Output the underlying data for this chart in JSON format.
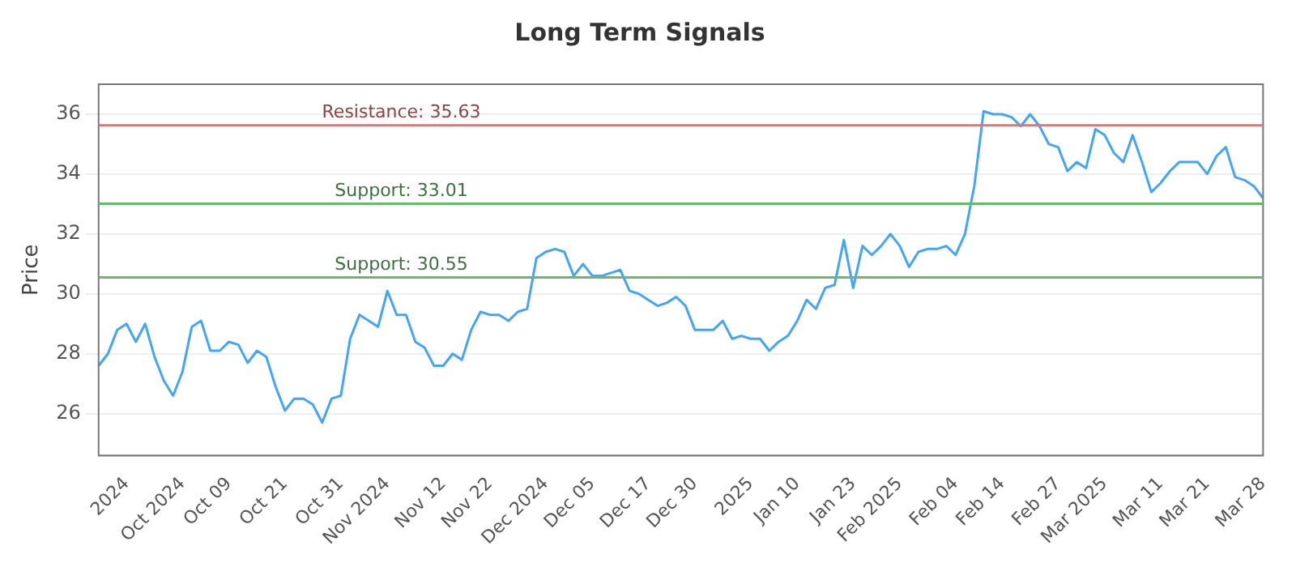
{
  "chart_data": {
    "type": "line",
    "title": "Long Term Signals",
    "ylabel": "Price",
    "categories": [
      null,
      null,
      null,
      "2024",
      null,
      null,
      null,
      null,
      null,
      "Oct 2024",
      null,
      null,
      null,
      null,
      "Oct 09",
      null,
      null,
      null,
      null,
      null,
      "Oct 21",
      null,
      null,
      null,
      null,
      null,
      "Oct 31",
      null,
      null,
      null,
      null,
      "Nov 2024",
      null,
      null,
      null,
      null,
      null,
      "Nov 12",
      null,
      null,
      null,
      null,
      "Nov 22",
      null,
      null,
      null,
      null,
      null,
      "Dec 2024",
      null,
      null,
      null,
      null,
      "Dec 05",
      null,
      null,
      null,
      null,
      null,
      "Dec 17",
      null,
      null,
      null,
      null,
      "Dec 30",
      null,
      null,
      null,
      null,
      null,
      "2025",
      null,
      null,
      null,
      null,
      "Jan 10",
      null,
      null,
      null,
      null,
      null,
      "Jan 23",
      null,
      null,
      null,
      null,
      "Feb 2025",
      null,
      null,
      null,
      null,
      null,
      "Feb 04",
      null,
      null,
      null,
      null,
      "Feb 14",
      null,
      null,
      null,
      null,
      null,
      "Feb 27",
      null,
      null,
      null,
      null,
      "Mar 2025",
      null,
      null,
      null,
      null,
      null,
      "Mar 11",
      null,
      null,
      null,
      null,
      "Mar 21",
      null,
      null,
      null,
      null,
      null,
      "Mar 28"
    ],
    "series": [
      {
        "color": "#42a5f5",
        "values": [
          27.6,
          28.0,
          28.8,
          29.0,
          28.4,
          29.0,
          27.9,
          27.1,
          26.6,
          27.4,
          28.9,
          29.1,
          28.1,
          28.1,
          28.4,
          28.3,
          27.7,
          28.1,
          27.9,
          26.9,
          26.1,
          26.5,
          26.5,
          26.3,
          25.7,
          26.5,
          26.6,
          28.5,
          29.3,
          29.1,
          28.9,
          30.1,
          29.3,
          29.3,
          28.4,
          28.2,
          27.6,
          27.6,
          28.0,
          27.8,
          28.8,
          29.4,
          29.3,
          29.3,
          29.1,
          29.4,
          29.5,
          31.2,
          31.4,
          31.5,
          31.4,
          30.6,
          31.0,
          30.6,
          30.6,
          30.7,
          30.8,
          30.1,
          30.0,
          29.8,
          29.6,
          29.7,
          29.9,
          29.6,
          28.8,
          28.8,
          28.8,
          29.1,
          28.5,
          28.6,
          28.5,
          28.5,
          28.1,
          28.4,
          28.6,
          29.1,
          29.8,
          29.5,
          30.2,
          30.3,
          31.8,
          30.2,
          31.6,
          31.3,
          31.6,
          32.0,
          31.6,
          30.9,
          31.4,
          31.5,
          31.5,
          31.6,
          31.3,
          32.0,
          33.6,
          36.1,
          36.0,
          36.0,
          35.9,
          35.6,
          36.0,
          35.6,
          35.0,
          34.9,
          34.1,
          34.4,
          34.2,
          35.5,
          35.3,
          34.7,
          34.4,
          35.3,
          34.4,
          33.4,
          33.7,
          34.1,
          34.4,
          34.4,
          34.4,
          34.0,
          34.6,
          34.9,
          33.9,
          33.8,
          33.6,
          33.2
        ]
      }
    ],
    "ylim": [
      24.6,
      37
    ],
    "yticks": [
      26,
      28,
      30,
      32,
      34,
      36
    ],
    "grid": "y",
    "legend": false,
    "marker": "none",
    "line_style": "solid",
    "ref_lines": [
      {
        "axis": "y",
        "value": 35.63,
        "label": "Resistance: 35.63",
        "color": "#e57373"
      },
      {
        "axis": "y",
        "value": 33.01,
        "label": "Support: 33.01",
        "color": "#66bb6a"
      },
      {
        "axis": "y",
        "value": 30.55,
        "label": "Support: 30.55",
        "color": "#66bb6a"
      }
    ]
  }
}
